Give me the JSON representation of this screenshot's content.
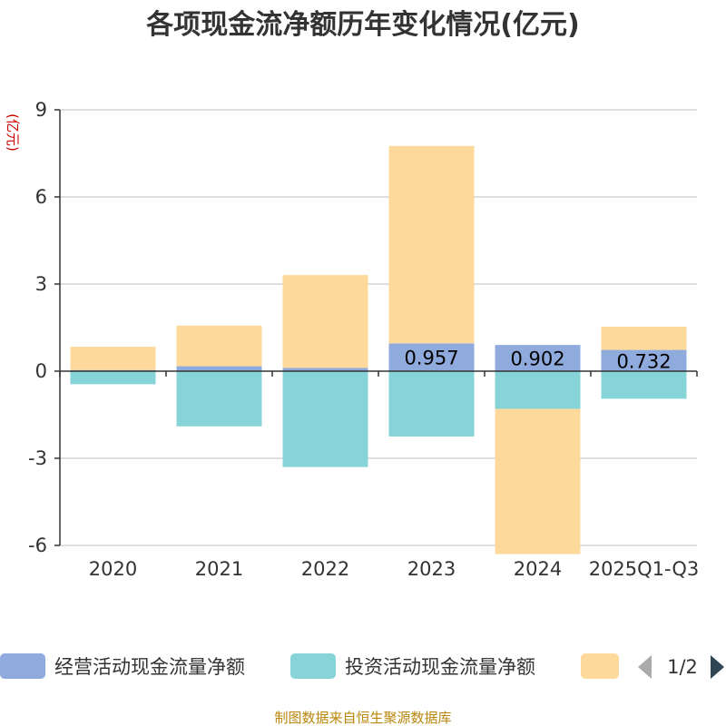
{
  "chart_data": {
    "type": "bar",
    "stacked": true,
    "title": "各项现金流净额历年变化情况(亿元)",
    "ylabel": "(亿元)",
    "xlabel": "",
    "categories": [
      "2020",
      "2021",
      "2022",
      "2023",
      "2024",
      "2025Q1-Q3"
    ],
    "ylim": [
      -6,
      9
    ],
    "yticks": [
      9,
      6,
      3,
      0,
      -3,
      -6
    ],
    "ytick_labels": [
      "9",
      "6",
      "3",
      "0",
      "-3",
      "-6"
    ],
    "grid": true,
    "series": [
      {
        "name": "经营活动现金流量净额",
        "color": "#8faadc",
        "values": [
          0.04,
          0.17,
          0.11,
          0.957,
          0.902,
          0.732
        ],
        "labels": [
          "",
          "",
          "",
          "0.957",
          "0.902",
          "0.732"
        ]
      },
      {
        "name": "投资活动现金流量净额",
        "color": "#86d4d8",
        "values": [
          -0.45,
          -1.9,
          -3.3,
          -2.25,
          -1.3,
          -0.95
        ]
      },
      {
        "name": "",
        "color": "#fdd99b",
        "values": [
          0.8,
          1.4,
          3.2,
          6.8,
          -5.0,
          0.8
        ]
      }
    ],
    "legend_position": "bottom",
    "legend_page": "1/2"
  },
  "source": "制图数据来自恒生聚源数据库"
}
